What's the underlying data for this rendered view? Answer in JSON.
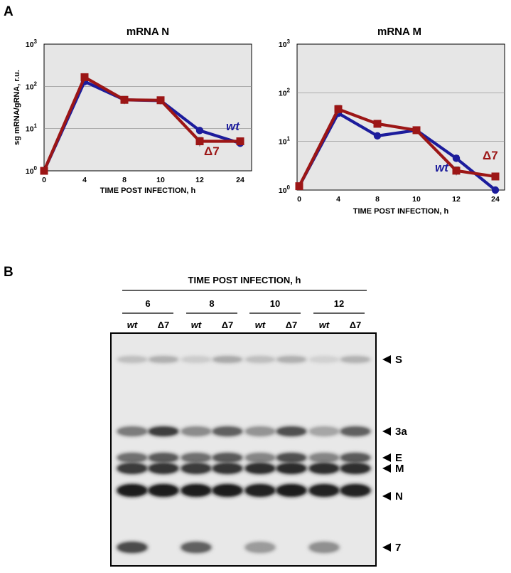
{
  "panel_a": "A",
  "panel_b": "B",
  "chart_data": [
    {
      "type": "line",
      "title": "mRNA N",
      "xlabel": "TIME POST INFECTION, h",
      "ylabel": "sg mRNA/gRNA, r.u.",
      "yscale": "log",
      "ylim": [
        1,
        1000
      ],
      "yticks": [
        "10",
        "10",
        "10",
        "10"
      ],
      "yexp": [
        "0",
        "1",
        "2",
        "3"
      ],
      "categories": [
        "0",
        "4",
        "8",
        "10",
        "12",
        "24"
      ],
      "grid": true,
      "series": [
        {
          "name": "wt",
          "color": "#1c1c9c",
          "marker": "circle",
          "values": [
            1,
            130,
            48,
            46,
            9,
            4.5
          ],
          "errors": [
            0.05,
            20,
            8,
            7,
            1,
            0.5
          ]
        },
        {
          "name": "Δ7",
          "color": "#9c1616",
          "marker": "square",
          "values": [
            1,
            165,
            48,
            47,
            5,
            5
          ],
          "errors": [
            0.05,
            35,
            10,
            9,
            1.2,
            1
          ]
        }
      ]
    },
    {
      "type": "line",
      "title": "mRNA M",
      "xlabel": "TIME POST INFECTION, h",
      "ylabel": "",
      "yscale": "log",
      "ylim": [
        1,
        1000
      ],
      "yticks": [
        "10",
        "10",
        "10",
        "10"
      ],
      "yexp": [
        "0",
        "1",
        "2",
        "3"
      ],
      "categories": [
        "0",
        "4",
        "8",
        "10",
        "12",
        "24"
      ],
      "grid": true,
      "series": [
        {
          "name": "wt",
          "color": "#1c1c9c",
          "marker": "circle",
          "values": [
            1.2,
            38,
            13,
            17,
            4.5,
            1
          ],
          "errors": [
            0.05,
            6,
            1.5,
            2,
            0.6,
            0.1
          ]
        },
        {
          "name": "Δ7",
          "color": "#9c1616",
          "marker": "square",
          "values": [
            1.2,
            46,
            23,
            17,
            2.5,
            1.9
          ],
          "errors": [
            0.05,
            9,
            3,
            2,
            0.5,
            0.3
          ]
        }
      ]
    }
  ],
  "blot": {
    "header": "TIME POST INFECTION, h",
    "times": [
      "6",
      "8",
      "10",
      "12"
    ],
    "lanes": [
      "wt",
      "Δ7",
      "wt",
      "Δ7",
      "wt",
      "Δ7",
      "wt",
      "Δ7"
    ],
    "bands": [
      {
        "label": "S",
        "intensity": [
          0.18,
          0.25,
          0.12,
          0.28,
          0.18,
          0.25,
          0.1,
          0.24
        ]
      },
      {
        "label": "3a",
        "intensity": [
          0.5,
          0.78,
          0.42,
          0.62,
          0.38,
          0.7,
          0.3,
          0.62
        ]
      },
      {
        "label": "E",
        "intensity": [
          0.55,
          0.65,
          0.55,
          0.65,
          0.45,
          0.7,
          0.45,
          0.65
        ]
      },
      {
        "label": "M",
        "intensity": [
          0.8,
          0.82,
          0.8,
          0.82,
          0.85,
          0.88,
          0.85,
          0.85
        ]
      },
      {
        "label": "N",
        "intensity": [
          0.95,
          0.95,
          0.95,
          0.95,
          0.92,
          0.95,
          0.92,
          0.92
        ]
      },
      {
        "label": "7",
        "intensity": [
          0.72,
          0,
          0.62,
          0,
          0.35,
          0,
          0.4,
          0
        ]
      }
    ]
  }
}
